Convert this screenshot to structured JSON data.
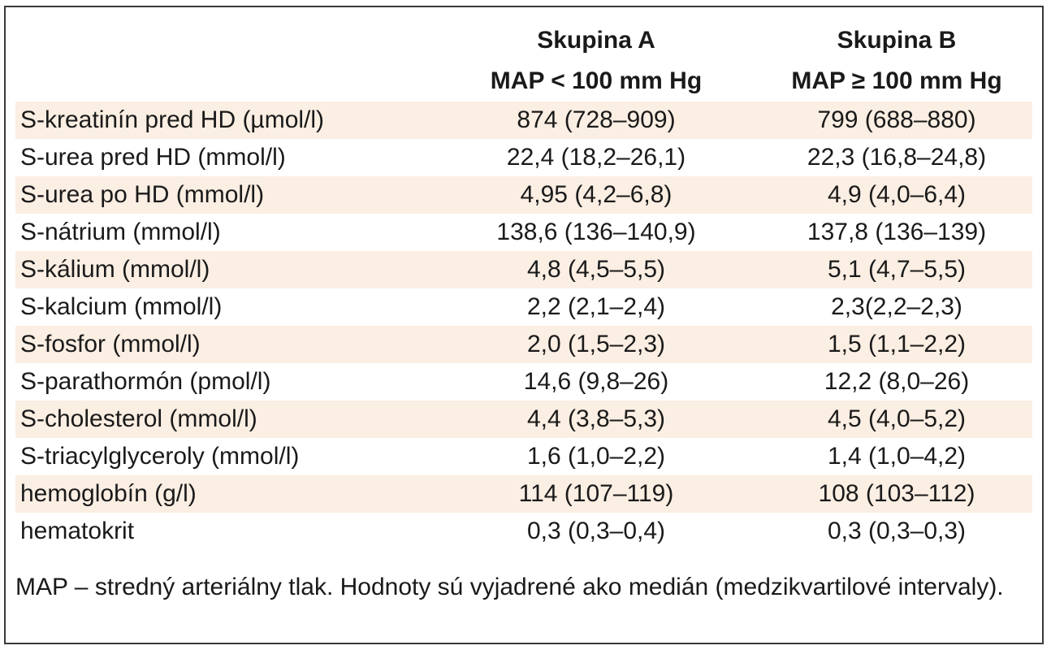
{
  "header": {
    "group_a_title": "Skupina A",
    "group_a_sub": "MAP < 100 mm Hg",
    "group_b_title": "Skupina B",
    "group_b_sub": "MAP ≥ 100 mm Hg"
  },
  "rows": [
    {
      "label": "S-kreatinín pred HD (µmol/l)",
      "a": "874 (728–909)",
      "b": "799 (688–880)"
    },
    {
      "label": "S-urea pred HD (mmol/l)",
      "a": "22,4 (18,2–26,1)",
      "b": "22,3 (16,8–24,8)"
    },
    {
      "label": "S-urea po HD (mmol/l)",
      "a": "4,95 (4,2–6,8)",
      "b": "4,9 (4,0–6,4)"
    },
    {
      "label": "S-nátrium (mmol/l)",
      "a": "138,6 (136–140,9)",
      "b": "137,8 (136–139)"
    },
    {
      "label": "S-kálium (mmol/l)",
      "a": "4,8 (4,5–5,5)",
      "b": "5,1 (4,7–5,5)"
    },
    {
      "label": "S-kalcium (mmol/l)",
      "a": "2,2 (2,1–2,4)",
      "b": "2,3(2,2–2,3)"
    },
    {
      "label": "S-fosfor (mmol/l)",
      "a": "2,0 (1,5–2,3)",
      "b": "1,5 (1,1–2,2)"
    },
    {
      "label": "S-parathormón (pmol/l)",
      "a": "14,6 (9,8–26)",
      "b": "12,2 (8,0–26)"
    },
    {
      "label": "S-cholesterol (mmol/l)",
      "a": "4,4 (3,8–5,3)",
      "b": "4,5 (4,0–5,2)"
    },
    {
      "label": "S-triacylglyceroly (mmol/l)",
      "a": "1,6 (1,0–2,2)",
      "b": "1,4 (1,0–4,2)"
    },
    {
      "label": "hemoglobín (g/l)",
      "a": "114 (107–119)",
      "b": "108 (103–112)"
    },
    {
      "label": "hematokrit",
      "a": "0,3 (0,3–0,4)",
      "b": "0,3 (0,3–0,3)"
    }
  ],
  "footnote": "MAP – stredný arteriálny tlak. Hodnoty sú vyjadrené ako medián (medzikvartilové intervaly).",
  "colors": {
    "row_shade": "#fbeee3",
    "border": "#3a3a3a",
    "text": "#1a1a1a"
  }
}
